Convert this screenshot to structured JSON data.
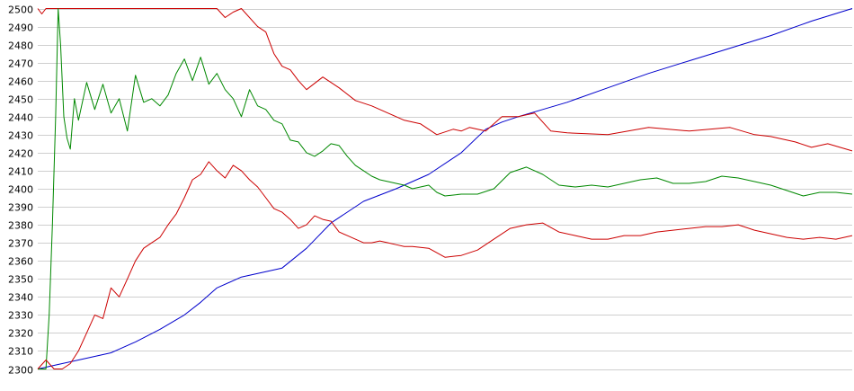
{
  "chart_data": {
    "type": "line",
    "title": "",
    "xlabel": "",
    "ylabel": "",
    "ylim": [
      2300,
      2500
    ],
    "y_ticks": [
      2300,
      2310,
      2320,
      2330,
      2340,
      2350,
      2360,
      2370,
      2380,
      2390,
      2400,
      2410,
      2420,
      2430,
      2440,
      2450,
      2460,
      2470,
      2480,
      2490,
      2500
    ],
    "xlim": [
      0,
      100
    ],
    "grid": "horizontal",
    "legend": "none",
    "series": [
      {
        "color": "#0000cc",
        "x": [
          0,
          3,
          6,
          9,
          10,
          12,
          15,
          18,
          20,
          22,
          25,
          28,
          30,
          33,
          36,
          40,
          44,
          48,
          52,
          55,
          57,
          59,
          62,
          65,
          70,
          75,
          80,
          85,
          90,
          95,
          100
        ],
        "y": [
          2300,
          2303,
          2306,
          2309,
          2311,
          2315,
          2322,
          2330,
          2337,
          2345,
          2351,
          2354,
          2356,
          2367,
          2381,
          2393,
          2400,
          2408,
          2420,
          2433,
          2437,
          2440,
          2444,
          2448,
          2456,
          2464,
          2471,
          2478,
          2485,
          2493,
          2500
        ]
      },
      {
        "color": "#cc0000",
        "x": [
          0,
          0.5,
          1,
          5,
          10,
          15,
          20,
          21,
          22,
          23,
          24,
          25,
          27,
          28,
          29,
          30,
          31,
          32,
          33,
          35,
          37,
          39,
          41,
          43,
          45,
          47,
          49,
          51,
          52,
          53,
          55,
          57,
          59,
          60,
          61,
          63,
          65,
          70,
          75,
          80,
          85,
          88,
          90,
          93,
          95,
          97,
          100
        ],
        "y": [
          2500,
          2497,
          2500,
          2500,
          2500,
          2500,
          2500,
          2500,
          2500,
          2495,
          2498,
          2500,
          2490,
          2487,
          2475,
          2468,
          2466,
          2460,
          2455,
          2462,
          2456,
          2449,
          2446,
          2442,
          2438,
          2436,
          2430,
          2433,
          2432,
          2434,
          2432,
          2440,
          2440,
          2441,
          2442,
          2432,
          2431,
          2430,
          2434,
          2432,
          2434,
          2430,
          2429,
          2426,
          2423,
          2425,
          2421
        ]
      },
      {
        "color": "#008800",
        "x": [
          0,
          0.5,
          1,
          1.4,
          1.8,
          2.2,
          2.5,
          2.8,
          3.2,
          3.6,
          4,
          4.5,
          5,
          6,
          7,
          8,
          9,
          10,
          11,
          12,
          13,
          14,
          15,
          16,
          17,
          18,
          19,
          20,
          21,
          22,
          23,
          24,
          25,
          26,
          27,
          28,
          29,
          30,
          31,
          32,
          33,
          34,
          35,
          36,
          37,
          38,
          39,
          40,
          41,
          42,
          43,
          44,
          45,
          46,
          47,
          48,
          49,
          50,
          52,
          54,
          56,
          58,
          60,
          62,
          64,
          66,
          68,
          70,
          72,
          74,
          76,
          78,
          80,
          82,
          84,
          86,
          88,
          90,
          92,
          94,
          96,
          98,
          100
        ],
        "y": [
          2300,
          2300,
          2300,
          2330,
          2380,
          2440,
          2500,
          2480,
          2440,
          2428,
          2422,
          2450,
          2438,
          2459,
          2444,
          2458,
          2442,
          2450,
          2432,
          2463,
          2448,
          2450,
          2446,
          2452,
          2464,
          2472,
          2460,
          2473,
          2458,
          2464,
          2455,
          2450,
          2440,
          2455,
          2446,
          2444,
          2438,
          2436,
          2427,
          2426,
          2420,
          2418,
          2421,
          2425,
          2424,
          2418,
          2413,
          2410,
          2407,
          2405,
          2404,
          2403,
          2402,
          2400,
          2401,
          2402,
          2398,
          2396,
          2397,
          2397,
          2400,
          2409,
          2412,
          2408,
          2402,
          2401,
          2402,
          2401,
          2403,
          2405,
          2406,
          2403,
          2403,
          2404,
          2407,
          2406,
          2404,
          2402,
          2399,
          2396,
          2398,
          2398,
          2397
        ]
      },
      {
        "color": "#cc0000",
        "x": [
          0,
          1,
          2,
          3,
          4,
          5,
          6,
          7,
          8,
          9,
          10,
          11,
          12,
          13,
          14,
          15,
          16,
          17,
          18,
          19,
          20,
          21,
          22,
          23,
          24,
          25,
          26,
          27,
          28,
          29,
          30,
          31,
          32,
          33,
          34,
          35,
          36,
          37,
          38,
          39,
          40,
          41,
          42,
          43,
          44,
          45,
          46,
          48,
          50,
          52,
          54,
          56,
          58,
          60,
          62,
          64,
          66,
          68,
          70,
          72,
          74,
          76,
          78,
          80,
          82,
          84,
          86,
          88,
          90,
          92,
          94,
          96,
          98,
          100
        ],
        "y": [
          2300,
          2305,
          2300,
          2300,
          2303,
          2310,
          2320,
          2330,
          2328,
          2345,
          2340,
          2350,
          2360,
          2367,
          2370,
          2373,
          2380,
          2386,
          2395,
          2405,
          2408,
          2415,
          2410,
          2406,
          2413,
          2410,
          2405,
          2401,
          2395,
          2389,
          2387,
          2383,
          2378,
          2380,
          2385,
          2383,
          2382,
          2376,
          2374,
          2372,
          2370,
          2370,
          2371,
          2370,
          2369,
          2368,
          2368,
          2367,
          2362,
          2363,
          2366,
          2372,
          2378,
          2380,
          2381,
          2376,
          2374,
          2372,
          2372,
          2374,
          2374,
          2376,
          2377,
          2378,
          2379,
          2379,
          2380,
          2377,
          2375,
          2373,
          2372,
          2373,
          2372,
          2374
        ]
      }
    ]
  }
}
